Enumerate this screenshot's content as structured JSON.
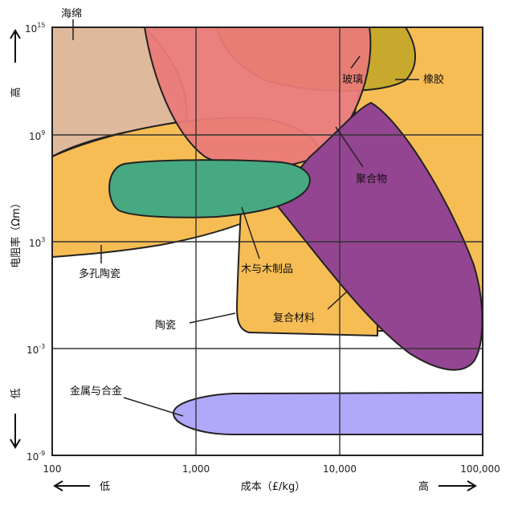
{
  "chart_data": {
    "type": "area",
    "title": "",
    "xlabel": "成本（£/kg）",
    "ylabel": "电阻率（Ωm）",
    "x_scale": "log",
    "y_scale": "log",
    "xlim": [
      100,
      100000
    ],
    "ylim": [
      1e-09,
      1000000000000000.0
    ],
    "x_ticks": [
      "100",
      "1,000",
      "10,000",
      "100,000"
    ],
    "y_ticks": [
      {
        "base": "10",
        "exp": "15"
      },
      {
        "base": "10",
        "exp": "9"
      },
      {
        "base": "10",
        "exp": "3"
      },
      {
        "base": "10",
        "exp": "-3"
      },
      {
        "base": "10",
        "exp": "-9"
      }
    ],
    "y_direction": {
      "high": "高",
      "low": "低"
    },
    "x_direction": {
      "low": "低",
      "high": "高"
    },
    "grid": true,
    "regions": [
      {
        "name": "海绵",
        "color": "#dfb99c",
        "cost_range": [
          100,
          700
        ],
        "resistivity_range": [
          1000000000.0,
          1000000000000000.0
        ]
      },
      {
        "name": "多孔陶瓷",
        "color": "#f7bd55",
        "cost_range": [
          100,
          4000
        ],
        "resistivity_range": [
          1000.0,
          1000000000.0
        ]
      },
      {
        "name": "橡胶",
        "color": "#f7bd55",
        "cost_range": [
          5000,
          100000
        ],
        "resistivity_range": [
          1000.0,
          1000000000000000.0
        ]
      },
      {
        "name": "玻璃",
        "color": "#c8a92e",
        "cost_range": [
          3000,
          30000
        ],
        "resistivity_range": [
          1000000000000.0,
          1000000000000000.0
        ]
      },
      {
        "name": "聚合物",
        "color": "#ea7a78",
        "cost_range": [
          700,
          15000
        ],
        "resistivity_range": [
          10000000.0,
          1000000000000000.0
        ]
      },
      {
        "name": "木与木制品",
        "color": "#46a982",
        "cost_range": [
          300,
          6000
        ],
        "resistivity_range": [
          10000.0,
          10000000.0
        ]
      },
      {
        "name": "复合材料",
        "color": "#944591",
        "cost_range": [
          5000,
          100000
        ],
        "resistivity_range": [
          0.0001,
          1000000000.0
        ]
      },
      {
        "name": "陶瓷",
        "color": "#f7bd55",
        "cost_range": [
          2000,
          20000
        ],
        "resistivity_range": [
          0.001,
          100000.0
        ]
      },
      {
        "name": "金属与合金",
        "color": "#b0a9f9",
        "cost_range": [
          700,
          100000
        ],
        "resistivity_range": [
          1e-08,
          1e-06
        ]
      }
    ]
  }
}
